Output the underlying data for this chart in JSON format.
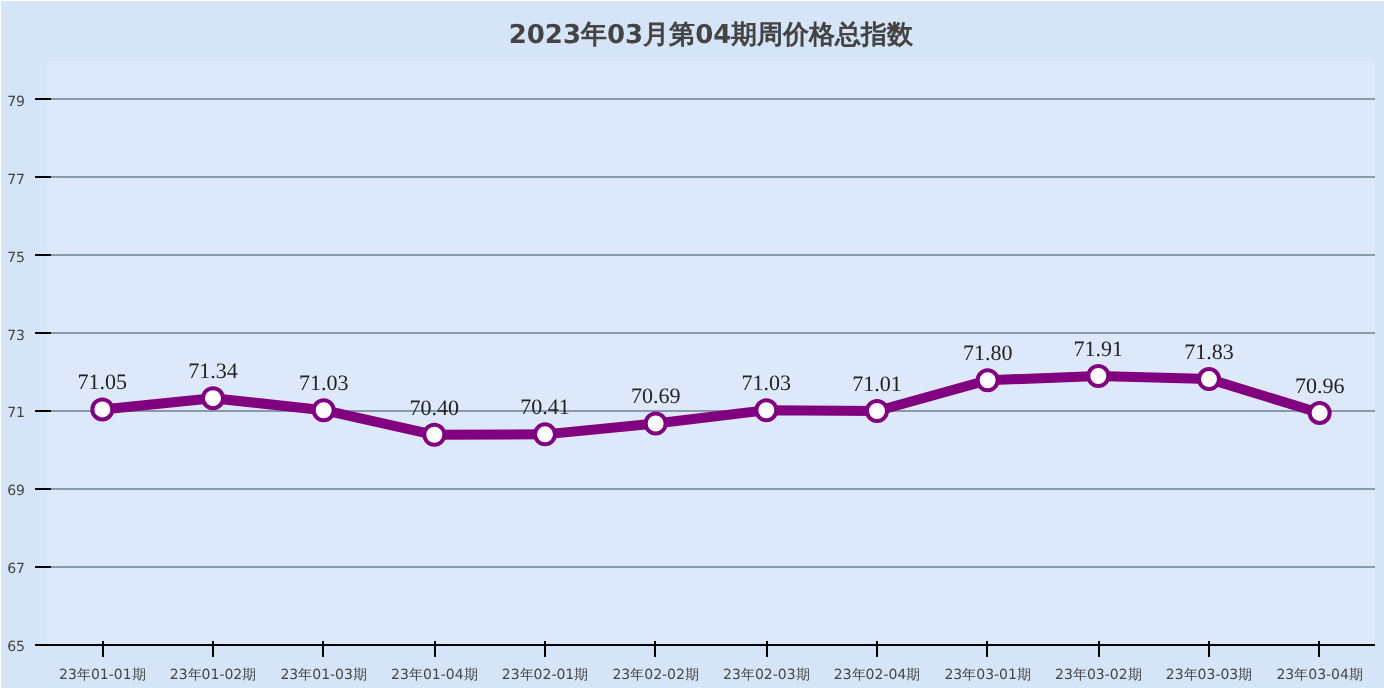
{
  "chart_data": {
    "type": "line",
    "title": "2023年03月第04期周价格总指数",
    "categories": [
      "23年01-01期",
      "23年01-02期",
      "23年01-03期",
      "23年01-04期",
      "23年02-01期",
      "23年02-02期",
      "23年02-03期",
      "23年02-04期",
      "23年03-01期",
      "23年03-02期",
      "23年03-03期",
      "23年03-04期"
    ],
    "series": [
      {
        "color": "#800080",
        "values": [
          71.05,
          71.34,
          71.03,
          70.4,
          70.41,
          70.69,
          71.03,
          71.01,
          71.8,
          71.91,
          71.83,
          70.96
        ],
        "value_labels": [
          "71.05",
          "71.34",
          "71.03",
          "70.40",
          "70.41",
          "70.69",
          "71.03",
          "71.01",
          "71.80",
          "71.91",
          "71.83",
          "70.96"
        ]
      }
    ],
    "ylim": [
      65,
      80
    ],
    "yticks": [
      65,
      67,
      69,
      71,
      73,
      75,
      77,
      79
    ],
    "grid": "y",
    "marker": "circle",
    "line_style": "solid"
  }
}
